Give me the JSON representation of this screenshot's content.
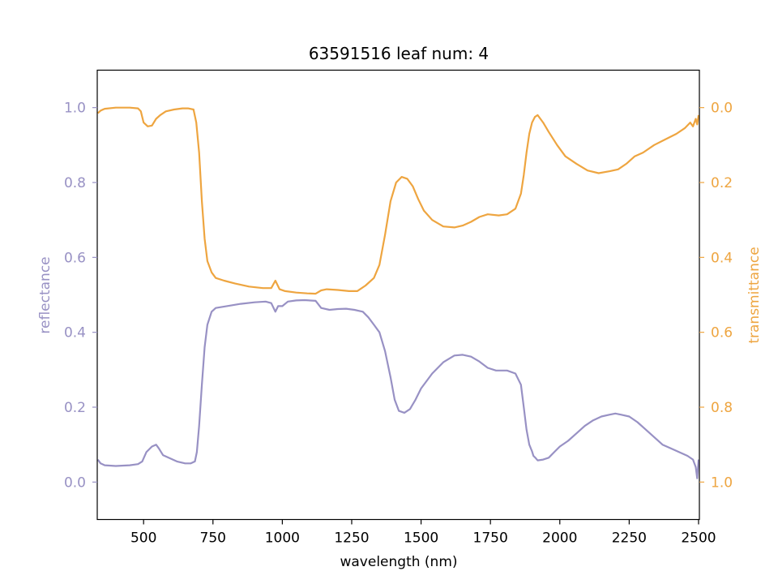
{
  "chart_data": {
    "type": "line",
    "title": "63591516 leaf num: 4",
    "xlabel": "wavelength (nm)",
    "ylabel_left": "reflectance",
    "ylabel_right": "transmittance",
    "xlim": [
      333,
      2503
    ],
    "ylim_left": [
      -0.1,
      1.1
    ],
    "ylim_right": [
      1.1,
      -0.1
    ],
    "x_ticks": [
      500,
      750,
      1000,
      1250,
      1500,
      1750,
      2000,
      2250,
      2500
    ],
    "x_tick_labels": [
      "500",
      "750",
      "1000",
      "1250",
      "1500",
      "1750",
      "2000",
      "2250",
      "2500"
    ],
    "y_left_ticks": [
      0.0,
      0.2,
      0.4,
      0.6,
      0.8,
      1.0
    ],
    "y_left_tick_labels": [
      "0.0",
      "0.2",
      "0.4",
      "0.6",
      "0.8",
      "1.0"
    ],
    "y_right_ticks": [
      0.0,
      0.2,
      0.4,
      0.6,
      0.8,
      1.0
    ],
    "y_right_tick_labels": [
      "0.0",
      "0.2",
      "0.4",
      "0.6",
      "0.8",
      "1.0"
    ],
    "grid": false,
    "colors": {
      "reflectance": "#9891c4",
      "transmittance": "#eea540",
      "axes": "#000000"
    },
    "series": [
      {
        "axis": "left",
        "color": "#9891c4",
        "x": [
          335,
          345,
          360,
          400,
          450,
          480,
          495,
          510,
          530,
          545,
          555,
          570,
          590,
          620,
          650,
          670,
          685,
          692,
          700,
          710,
          720,
          730,
          745,
          760,
          800,
          850,
          900,
          940,
          960,
          975,
          985,
          1000,
          1020,
          1050,
          1080,
          1120,
          1140,
          1170,
          1200,
          1230,
          1260,
          1290,
          1310,
          1330,
          1350,
          1370,
          1390,
          1405,
          1420,
          1440,
          1460,
          1480,
          1500,
          1540,
          1580,
          1620,
          1650,
          1680,
          1710,
          1740,
          1770,
          1790,
          1810,
          1840,
          1860,
          1870,
          1880,
          1890,
          1900,
          1905,
          1912,
          1920,
          1940,
          1960,
          1980,
          2000,
          2030,
          2060,
          2090,
          2120,
          2150,
          2180,
          2200,
          2220,
          2250,
          2280,
          2310,
          2340,
          2370,
          2400,
          2430,
          2460,
          2480,
          2490,
          2495,
          2500
        ],
        "y": [
          0.06,
          0.05,
          0.045,
          0.043,
          0.045,
          0.048,
          0.055,
          0.08,
          0.095,
          0.1,
          0.09,
          0.072,
          0.065,
          0.055,
          0.05,
          0.05,
          0.055,
          0.08,
          0.15,
          0.26,
          0.36,
          0.42,
          0.455,
          0.465,
          0.47,
          0.476,
          0.48,
          0.482,
          0.478,
          0.455,
          0.47,
          0.47,
          0.482,
          0.485,
          0.486,
          0.484,
          0.465,
          0.46,
          0.462,
          0.463,
          0.46,
          0.455,
          0.44,
          0.42,
          0.4,
          0.35,
          0.28,
          0.22,
          0.19,
          0.185,
          0.195,
          0.22,
          0.25,
          0.29,
          0.32,
          0.338,
          0.34,
          0.335,
          0.322,
          0.305,
          0.298,
          0.298,
          0.298,
          0.29,
          0.26,
          0.2,
          0.14,
          0.1,
          0.082,
          0.07,
          0.065,
          0.058,
          0.06,
          0.065,
          0.08,
          0.095,
          0.11,
          0.13,
          0.15,
          0.165,
          0.175,
          0.18,
          0.183,
          0.18,
          0.175,
          0.16,
          0.14,
          0.12,
          0.1,
          0.09,
          0.08,
          0.07,
          0.06,
          0.04,
          0.01,
          0.06
        ]
      },
      {
        "axis": "right",
        "color": "#eea540",
        "x": [
          335,
          345,
          360,
          400,
          450,
          480,
          490,
          500,
          515,
          530,
          545,
          560,
          580,
          610,
          640,
          660,
          680,
          690,
          700,
          710,
          720,
          730,
          745,
          760,
          790,
          830,
          880,
          930,
          960,
          975,
          990,
          1010,
          1050,
          1090,
          1120,
          1140,
          1160,
          1200,
          1240,
          1270,
          1300,
          1330,
          1350,
          1370,
          1390,
          1410,
          1430,
          1450,
          1470,
          1490,
          1510,
          1540,
          1580,
          1620,
          1650,
          1680,
          1710,
          1740,
          1780,
          1810,
          1840,
          1860,
          1870,
          1880,
          1890,
          1900,
          1910,
          1920,
          1940,
          1960,
          1990,
          2020,
          2060,
          2100,
          2140,
          2180,
          2210,
          2240,
          2270,
          2300,
          2340,
          2380,
          2420,
          2450,
          2470,
          2480,
          2490,
          2495,
          2500
        ],
        "y": [
          0.015,
          0.008,
          0.003,
          0.0,
          0.0,
          0.002,
          0.01,
          0.04,
          0.05,
          0.048,
          0.03,
          0.02,
          0.01,
          0.005,
          0.002,
          0.002,
          0.005,
          0.04,
          0.12,
          0.25,
          0.35,
          0.41,
          0.44,
          0.455,
          0.462,
          0.47,
          0.478,
          0.482,
          0.482,
          0.462,
          0.485,
          0.49,
          0.494,
          0.496,
          0.497,
          0.488,
          0.485,
          0.487,
          0.49,
          0.49,
          0.475,
          0.455,
          0.42,
          0.34,
          0.25,
          0.2,
          0.185,
          0.19,
          0.21,
          0.245,
          0.275,
          0.3,
          0.3175,
          0.32,
          0.315,
          0.305,
          0.292,
          0.285,
          0.288,
          0.285,
          0.27,
          0.23,
          0.18,
          0.12,
          0.07,
          0.04,
          0.025,
          0.02,
          0.04,
          0.065,
          0.1,
          0.13,
          0.15,
          0.168,
          0.175,
          0.17,
          0.165,
          0.15,
          0.13,
          0.12,
          0.1,
          0.085,
          0.07,
          0.055,
          0.04,
          0.05,
          0.03,
          0.045,
          0.02
        ]
      }
    ]
  }
}
